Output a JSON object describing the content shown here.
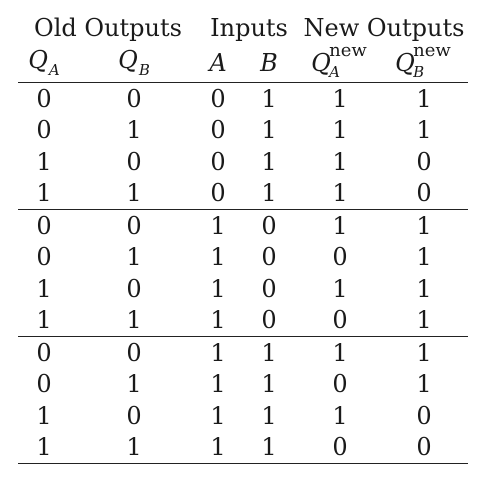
{
  "table": {
    "groups": [
      {
        "label": "Old Outputs",
        "span": 2
      },
      {
        "label": "Inputs",
        "span": 2
      },
      {
        "label": "New Outputs",
        "span": 2
      }
    ],
    "columns": [
      {
        "var": "Q",
        "sub": "A",
        "sup": ""
      },
      {
        "var": "Q",
        "sub": "B",
        "sup": ""
      },
      {
        "var": "A",
        "sub": "",
        "sup": ""
      },
      {
        "var": "B",
        "sub": "",
        "sup": ""
      },
      {
        "var": "Q",
        "sub": "A",
        "sup": "new"
      },
      {
        "var": "Q",
        "sub": "B",
        "sup": "new"
      }
    ],
    "blocks": [
      [
        [
          "0",
          "0",
          "0",
          "1",
          "1",
          "1"
        ],
        [
          "0",
          "1",
          "0",
          "1",
          "1",
          "1"
        ],
        [
          "1",
          "0",
          "0",
          "1",
          "1",
          "0"
        ],
        [
          "1",
          "1",
          "0",
          "1",
          "1",
          "0"
        ]
      ],
      [
        [
          "0",
          "0",
          "1",
          "0",
          "1",
          "1"
        ],
        [
          "0",
          "1",
          "1",
          "0",
          "0",
          "1"
        ],
        [
          "1",
          "0",
          "1",
          "0",
          "1",
          "1"
        ],
        [
          "1",
          "1",
          "1",
          "0",
          "0",
          "1"
        ]
      ],
      [
        [
          "0",
          "0",
          "1",
          "1",
          "1",
          "1"
        ],
        [
          "0",
          "1",
          "1",
          "1",
          "0",
          "1"
        ],
        [
          "1",
          "0",
          "1",
          "1",
          "1",
          "0"
        ],
        [
          "1",
          "1",
          "1",
          "1",
          "0",
          "0"
        ]
      ]
    ]
  }
}
